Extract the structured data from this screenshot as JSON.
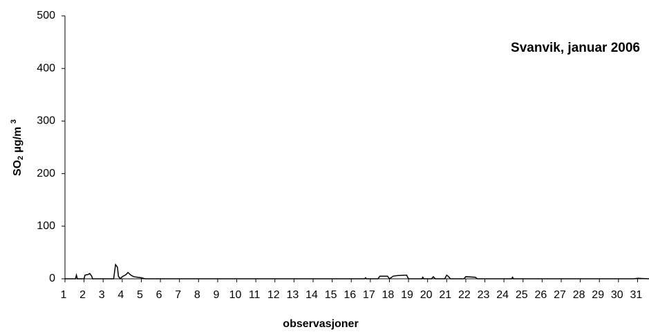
{
  "chart_data": {
    "type": "line",
    "title": "Svanvik, januar 2006",
    "ylabel_parts": [
      "SO",
      "2",
      " µg/m ",
      "3"
    ],
    "xlabel": "observasjoner",
    "x": [
      1,
      1.55,
      1.6,
      1.65,
      2.0,
      2.05,
      2.2,
      2.3,
      2.4,
      2.45,
      3.55,
      3.65,
      3.75,
      3.8,
      3.9,
      4.0,
      4.2,
      4.3,
      4.45,
      4.6,
      4.8,
      5.0,
      5.2,
      16.7,
      16.75,
      16.8,
      17.4,
      17.5,
      17.9,
      18.0,
      18.2,
      18.4,
      18.9,
      19.0,
      19.7,
      19.75,
      19.8,
      20.2,
      20.3,
      20.4,
      20.9,
      21.0,
      21.1,
      21.2,
      21.9,
      22.0,
      22.5,
      22.6,
      24.4,
      24.45,
      24.5,
      30.8,
      31.0,
      31.6
    ],
    "values": [
      0,
      0,
      7,
      0,
      0,
      7,
      8,
      10,
      5,
      0,
      0,
      27,
      22,
      5,
      0,
      4,
      8,
      12,
      7,
      4,
      3,
      2,
      0,
      0,
      2,
      0,
      0,
      5,
      5,
      0,
      5,
      6,
      7,
      0,
      0,
      3,
      0,
      0,
      4,
      0,
      0,
      7,
      4,
      0,
      0,
      4,
      3,
      0,
      0,
      3,
      0,
      0,
      1,
      0
    ],
    "color": "#000000",
    "xlim": [
      1,
      31.6
    ],
    "xticks": [
      1,
      2,
      3,
      4,
      5,
      6,
      7,
      8,
      9,
      10,
      11,
      12,
      13,
      14,
      15,
      16,
      17,
      18,
      19,
      20,
      21,
      22,
      23,
      24,
      25,
      26,
      27,
      28,
      29,
      30,
      31
    ],
    "ylim": [
      0,
      500
    ],
    "yticks": [
      0,
      100,
      200,
      300,
      400,
      500
    ],
    "grid": false
  }
}
